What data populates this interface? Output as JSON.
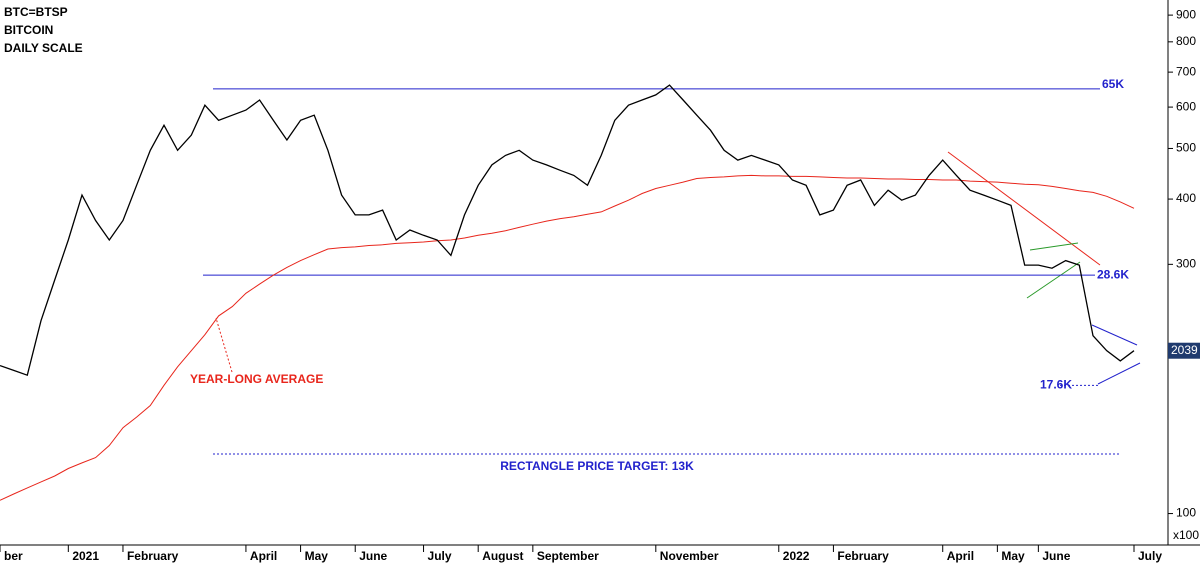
{
  "chart_data": {
    "type": "line",
    "titles": [
      "BTC=BTSP",
      "BITCOIN",
      "DAILY SCALE"
    ],
    "categories": [
      "ber",
      null,
      null,
      null,
      null,
      "2021",
      null,
      null,
      null,
      "February",
      null,
      null,
      null,
      null,
      null,
      null,
      null,
      null,
      "April",
      null,
      null,
      null,
      "May",
      null,
      null,
      null,
      "June",
      null,
      null,
      null,
      null,
      "July",
      null,
      null,
      null,
      "August",
      null,
      null,
      null,
      "September",
      null,
      null,
      null,
      null,
      null,
      null,
      null,
      null,
      "November",
      null,
      null,
      null,
      null,
      null,
      null,
      null,
      null,
      "2022",
      null,
      null,
      null,
      "February",
      null,
      null,
      null,
      null,
      null,
      null,
      null,
      "April",
      null,
      null,
      null,
      "May",
      null,
      null,
      "June",
      null,
      null,
      null,
      null,
      null,
      null,
      "July"
    ],
    "price": {
      "color": "#000000",
      "values": [
        192,
        188,
        184,
        234,
        280,
        334,
        407,
        364,
        334,
        364,
        425,
        496,
        554,
        496,
        530,
        605,
        566,
        579,
        592,
        619,
        566,
        519,
        566,
        579,
        496,
        407,
        373,
        373,
        381,
        334,
        349,
        341,
        334,
        312,
        373,
        425,
        465,
        485,
        496,
        475,
        465,
        454,
        444,
        425,
        485,
        566,
        605,
        619,
        633,
        661,
        619,
        579,
        542,
        496,
        475,
        485,
        475,
        465,
        435,
        425,
        373,
        381,
        425,
        435,
        389,
        416,
        398,
        407,
        444,
        475,
        444,
        416,
        407,
        398,
        389,
        299,
        299,
        295,
        305,
        299,
        219,
        205,
        196,
        205
      ]
    },
    "average": {
      "name": "YEAR-LONG AVERAGE",
      "color": "#e8261c",
      "values": [
        106,
        109,
        112,
        115,
        118,
        122,
        125,
        128,
        135,
        146,
        153,
        161,
        176,
        191,
        205,
        220,
        239,
        249,
        264,
        275,
        286,
        296,
        305,
        313,
        321,
        323,
        324,
        326,
        327,
        329,
        330,
        331,
        333,
        334,
        337,
        341,
        344,
        348,
        353,
        358,
        363,
        367,
        370,
        374,
        378,
        388,
        398,
        410,
        419,
        425,
        431,
        438,
        440,
        441,
        443,
        444,
        443,
        443,
        442,
        442,
        441,
        440,
        439,
        439,
        438,
        437,
        437,
        436,
        436,
        435,
        435,
        433,
        432,
        431,
        429,
        427,
        426,
        423,
        419,
        415,
        412,
        405,
        395,
        384
      ]
    },
    "levels": [
      {
        "value": 650,
        "label": "65K"
      },
      {
        "value": 286,
        "label": "28.6K"
      },
      {
        "value": 176,
        "label": "17.6K"
      }
    ],
    "target": {
      "value": 130,
      "label": "RECTANGLE PRICE TARGET: 13K"
    },
    "level_color": "#2222cc",
    "last_price_label": "2039",
    "ylim": [
      89,
      962
    ],
    "yticks": [
      100,
      300,
      400,
      500,
      600,
      700,
      800,
      900
    ],
    "y_unit": "x100",
    "log_scale": true
  }
}
